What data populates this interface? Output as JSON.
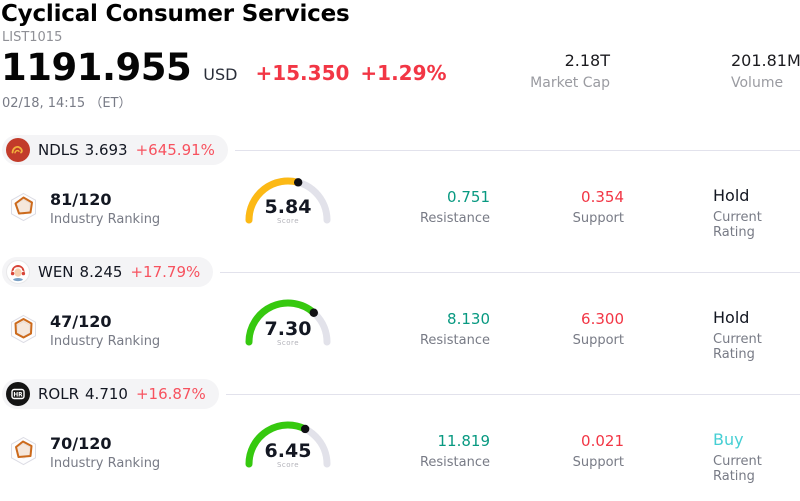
{
  "colors": {
    "accent_red": "#f23645",
    "pill_change_red": "#f7525f",
    "resistance_teal": "#089981",
    "support_red": "#f23645",
    "buy_cyan": "#46cfd4",
    "text_dark": "#131722",
    "label_gray": "#787b86",
    "gauge_track": "#e2e2ea"
  },
  "header": {
    "title": "Cyclical Consumer Services",
    "subtitle": "LIST1015",
    "price": "1191.955",
    "currency": "USD",
    "change_abs": "+15.350",
    "change_pct": "+1.29%",
    "timestamp": "02/18, 14:15 （ET）",
    "market_cap": {
      "value": "2.18T",
      "label": "Market Cap"
    },
    "volume": {
      "value": "201.81M",
      "label": "Volume"
    }
  },
  "labels": {
    "industry_ranking": "Industry Ranking",
    "score": "Score",
    "resistance": "Resistance",
    "support": "Support",
    "current_rating": "Current Rating"
  },
  "rows": [
    {
      "ticker": "NDLS",
      "price": "3.693",
      "change": "+645.91%",
      "ranking": "81/120",
      "score": "5.84",
      "score_value": 5.84,
      "gauge_color": "#fcb915",
      "resistance": "0.751",
      "support": "0.354",
      "rating": "Hold",
      "rating_color": "#131722"
    },
    {
      "ticker": "WEN",
      "price": "8.245",
      "change": "+17.79%",
      "ranking": "47/120",
      "score": "7.30",
      "score_value": 7.3,
      "gauge_color": "#36c90f",
      "resistance": "8.130",
      "support": "6.300",
      "rating": "Hold",
      "rating_color": "#131722"
    },
    {
      "ticker": "ROLR",
      "price": "4.710",
      "change": "+16.87%",
      "ranking": "70/120",
      "score": "6.45",
      "score_value": 6.45,
      "gauge_color": "#36c90f",
      "resistance": "11.819",
      "support": "0.021",
      "rating": "Buy",
      "rating_color": "#46cfd4",
      "logo_text": "HR"
    }
  ]
}
